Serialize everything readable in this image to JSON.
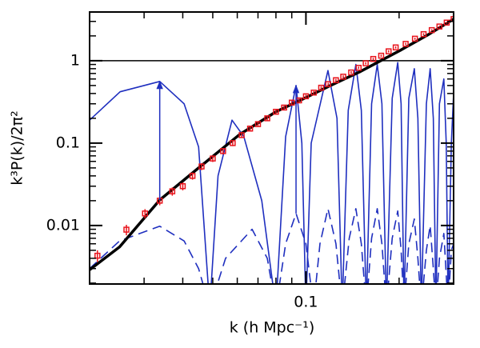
{
  "chart_data": {
    "type": "line",
    "xlabel": "k (h Mpc⁻¹)",
    "ylabel": "k³P(k)/2π²",
    "xscale": "log",
    "yscale": "log",
    "xlim": [
      0.02,
      0.3
    ],
    "ylim": [
      0.00195,
      3.9
    ],
    "xticks": [
      0.1
    ],
    "yticks": [
      0.01,
      0.1,
      1
    ],
    "xminorticks": [
      0.03,
      0.04,
      0.05,
      0.06,
      0.07,
      0.08,
      0.09,
      0.2
    ],
    "yminorticks": [
      0.002,
      0.003,
      0.004,
      0.005,
      0.006,
      0.007,
      0.008,
      0.009,
      0.02,
      0.03,
      0.04,
      0.05,
      0.06,
      0.07,
      0.08,
      0.09,
      0.2,
      0.3,
      0.4,
      0.5,
      0.6,
      0.7,
      0.8,
      0.9,
      2,
      3
    ],
    "hline": 1,
    "series": [
      {
        "color": "#1f2fbf",
        "linestyle": "solid",
        "width": 1.6,
        "x": [
          0.02,
          0.0251,
          0.0337,
          0.0404,
          0.045,
          0.0489,
          0.052,
          0.0577,
          0.063,
          0.072,
          0.08,
          0.086,
          0.0929,
          0.097,
          0.1,
          0.104,
          0.1178,
          0.126,
          0.131,
          0.137,
          0.145,
          0.151,
          0.1567,
          0.163,
          0.17,
          0.176,
          0.182,
          0.19,
          0.198,
          0.203,
          0.2075,
          0.215,
          0.224,
          0.23,
          0.236,
          0.245,
          0.252,
          0.258,
          0.263,
          0.27,
          0.279,
          0.284,
          0.288,
          0.295,
          0.3
        ],
        "values": [
          0.19,
          0.42,
          0.56,
          0.3,
          0.09,
          0.001,
          0.04,
          0.19,
          0.12,
          0.02,
          0.001,
          0.12,
          0.5,
          0.1,
          0.001,
          0.1,
          0.76,
          0.2,
          0.001,
          0.25,
          0.9,
          0.25,
          0.001,
          0.3,
          0.9,
          0.3,
          0.001,
          0.35,
          0.95,
          0.3,
          0.001,
          0.35,
          0.8,
          0.2,
          0.001,
          0.3,
          0.8,
          0.2,
          0.001,
          0.3,
          0.6,
          0.1,
          0.001,
          0.1,
          0.4
        ]
      },
      {
        "color": "#1f2fbf",
        "linestyle": "dashed",
        "width": 1.6,
        "x": [
          0.02,
          0.025,
          0.0337,
          0.0404,
          0.045,
          0.0489,
          0.055,
          0.067,
          0.075,
          0.08,
          0.086,
          0.0929,
          0.1,
          0.1058,
          0.111,
          0.1178,
          0.125,
          0.131,
          0.138,
          0.145,
          0.151,
          0.1567,
          0.163,
          0.17,
          0.176,
          0.182,
          0.19,
          0.198,
          0.203,
          0.2075,
          0.215,
          0.224,
          0.23,
          0.236,
          0.245,
          0.252,
          0.258,
          0.263,
          0.27,
          0.279,
          0.288,
          0.295,
          0.3
        ],
        "values": [
          0.003,
          0.0065,
          0.0098,
          0.0065,
          0.003,
          0.001,
          0.004,
          0.009,
          0.004,
          0.001,
          0.006,
          0.014,
          0.006,
          0.001,
          0.006,
          0.016,
          0.006,
          0.001,
          0.007,
          0.016,
          0.006,
          0.001,
          0.007,
          0.016,
          0.006,
          0.001,
          0.007,
          0.015,
          0.005,
          0.001,
          0.006,
          0.012,
          0.004,
          0.001,
          0.005,
          0.01,
          0.003,
          0.001,
          0.004,
          0.008,
          0.001,
          0.005,
          0.006
        ]
      },
      {
        "color": "#000000",
        "linestyle": "solid",
        "width": 3.5,
        "x": [
          0.02,
          0.025,
          0.0337,
          0.045,
          0.0612,
          0.08,
          0.1,
          0.12,
          0.149,
          0.17,
          0.202,
          0.25,
          0.3
        ],
        "values": [
          0.0029,
          0.0055,
          0.0204,
          0.05,
          0.128,
          0.24,
          0.357,
          0.5,
          0.73,
          0.95,
          1.34,
          2.1,
          3.2
        ]
      },
      {
        "color": "#e8141c",
        "marker": "square",
        "x": [
          0.0212,
          0.0263,
          0.0302,
          0.0337,
          0.037,
          0.04,
          0.043,
          0.046,
          0.05,
          0.054,
          0.058,
          0.062,
          0.066,
          0.07,
          0.075,
          0.08,
          0.085,
          0.09,
          0.095,
          0.1,
          0.106,
          0.112,
          0.118,
          0.125,
          0.132,
          0.14,
          0.148,
          0.156,
          0.165,
          0.175,
          0.185,
          0.195,
          0.21,
          0.225,
          0.24,
          0.255,
          0.27,
          0.285,
          0.3
        ],
        "values": [
          0.0043,
          0.0089,
          0.014,
          0.02,
          0.026,
          0.03,
          0.04,
          0.052,
          0.065,
          0.08,
          0.1,
          0.125,
          0.15,
          0.17,
          0.2,
          0.24,
          0.27,
          0.31,
          0.33,
          0.37,
          0.41,
          0.47,
          0.52,
          0.58,
          0.64,
          0.72,
          0.82,
          0.93,
          1.05,
          1.15,
          1.3,
          1.45,
          1.6,
          1.85,
          2.1,
          2.35,
          2.6,
          2.9,
          3.2
        ],
        "errors": [
          0.0007,
          0.0013,
          0.0018,
          0.0024,
          0.003,
          0.0033,
          0.004,
          0.005,
          0.006,
          0.007,
          0.008,
          0.009,
          0.01,
          0.011,
          0.012,
          0.013,
          0.014,
          0.015,
          0.016,
          0.017,
          0.018,
          0.02,
          0.02,
          0.022,
          0.024,
          0.026,
          0.028,
          0.03,
          0.033,
          0.035,
          0.04,
          0.045,
          0.05,
          0.055,
          0.06,
          0.065,
          0.07,
          0.075,
          0.08
        ]
      }
    ],
    "arrows": [
      {
        "x": 0.0337,
        "from": 0.0204,
        "to": 0.56,
        "color": "#1f2fbf"
      },
      {
        "x": 0.0929,
        "from": 0.014,
        "to": 0.5,
        "color": "#1f2fbf"
      }
    ]
  }
}
